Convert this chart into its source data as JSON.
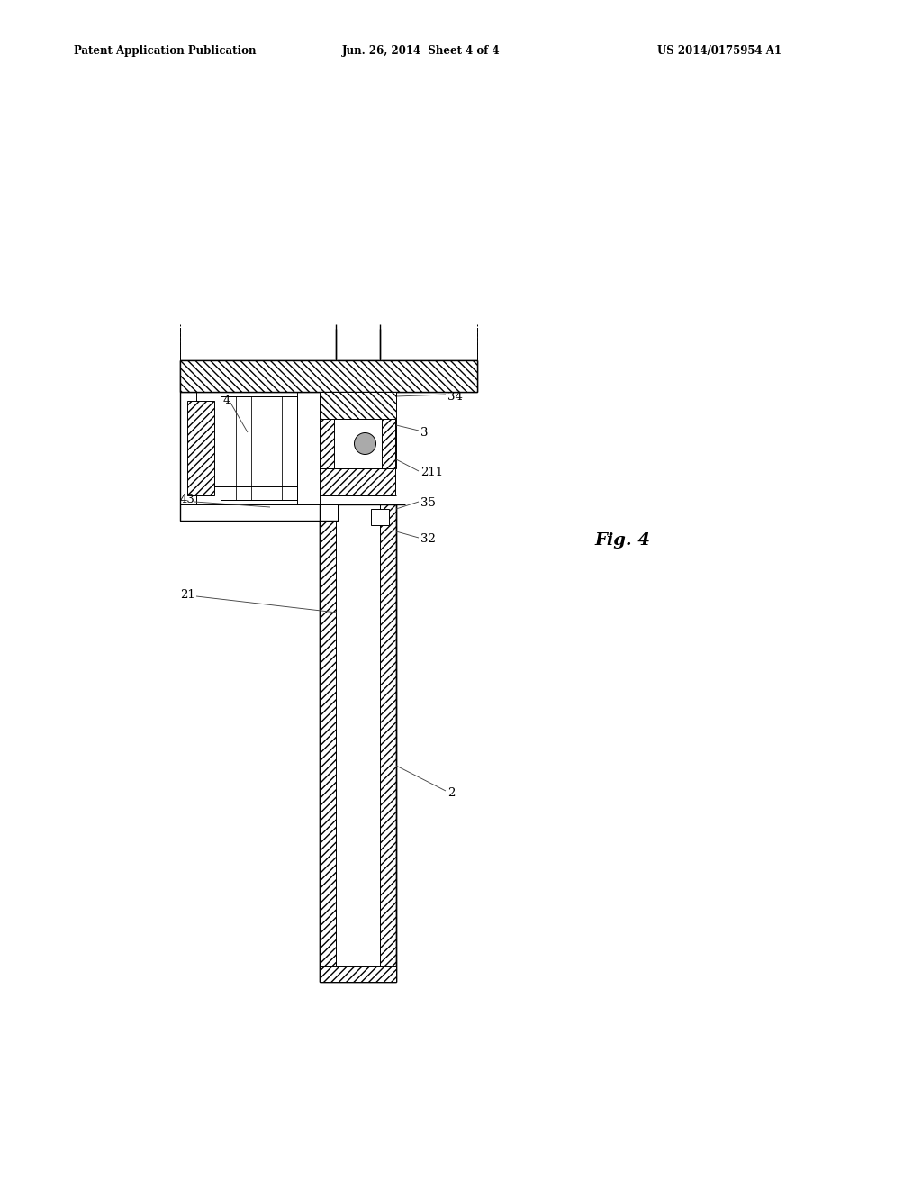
{
  "bg_color": "#ffffff",
  "lc": "#000000",
  "header_left": "Patent Application Publication",
  "header_mid": "Jun. 26, 2014  Sheet 4 of 4",
  "header_right": "US 2014/0175954 A1",
  "fig_label": "Fig. 4"
}
